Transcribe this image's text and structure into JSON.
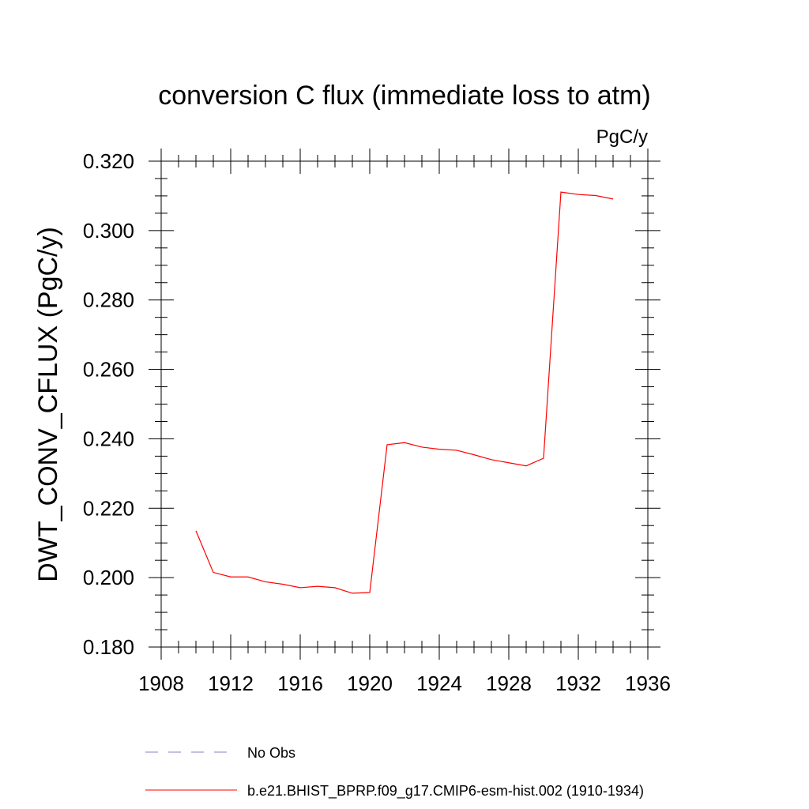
{
  "chart_data": {
    "type": "line",
    "title": "conversion C flux (immediate loss to atm)",
    "units": "PgC/y",
    "ylabel": "DWT_CONV_CFLUX  (PgC/y)",
    "xlabel": "",
    "xlim": [
      1908,
      1936
    ],
    "ylim": [
      0.18,
      0.32
    ],
    "x_ticks": [
      1908,
      1912,
      1916,
      1920,
      1924,
      1928,
      1932,
      1936
    ],
    "x_tick_labels": [
      "1908",
      "1912",
      "1916",
      "1920",
      "1924",
      "1928",
      "1932",
      "1936"
    ],
    "y_ticks": [
      0.18,
      0.2,
      0.22,
      0.24,
      0.26,
      0.28,
      0.3,
      0.32
    ],
    "y_tick_labels": [
      "0.180",
      "0.200",
      "0.220",
      "0.240",
      "0.260",
      "0.280",
      "0.300",
      "0.320"
    ],
    "grid": false,
    "legend_position": "bottom",
    "series": [
      {
        "name": "b.e21.BHIST_BPRP.f09_g17.CMIP6-esm-hist.002 (1910-1934)",
        "color": "#ff0000",
        "dash": "solid",
        "x": [
          1910,
          1911,
          1912,
          1913,
          1914,
          1915,
          1916,
          1917,
          1918,
          1919,
          1920,
          1921,
          1922,
          1923,
          1924,
          1925,
          1926,
          1927,
          1928,
          1929,
          1930,
          1931,
          1932,
          1933,
          1934
        ],
        "y": [
          0.2135,
          0.2015,
          0.2002,
          0.2002,
          0.1988,
          0.1981,
          0.1971,
          0.1975,
          0.1971,
          0.1955,
          0.1957,
          0.2383,
          0.2389,
          0.2376,
          0.237,
          0.2367,
          0.2354,
          0.234,
          0.2331,
          0.2322,
          0.2344,
          0.3111,
          0.3104,
          0.3101,
          0.3091
        ]
      }
    ],
    "legend": [
      {
        "label": "No Obs",
        "color": "#8a82c8",
        "dash": "dashed"
      },
      {
        "label": "b.e21.BHIST_BPRP.f09_g17.CMIP6-esm-hist.002 (1910-1934)",
        "color": "#ff0000",
        "dash": "solid"
      }
    ]
  }
}
